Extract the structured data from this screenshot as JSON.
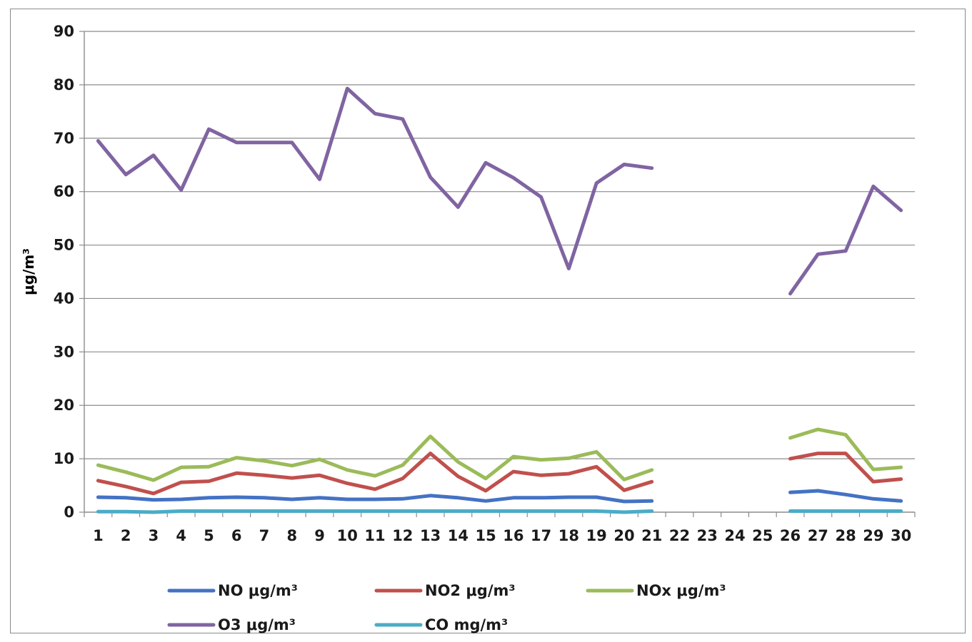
{
  "chart_data": {
    "type": "line",
    "title": "",
    "xlabel": "",
    "ylabel": "μg/m³",
    "ylim": [
      0,
      90
    ],
    "yticks": [
      0,
      10,
      20,
      30,
      40,
      50,
      60,
      70,
      80,
      90
    ],
    "grid": true,
    "legend_position": "bottom",
    "categories": [
      "1",
      "2",
      "3",
      "4",
      "5",
      "6",
      "7",
      "8",
      "9",
      "10",
      "11",
      "12",
      "13",
      "14",
      "15",
      "16",
      "17",
      "18",
      "19",
      "20",
      "21",
      "22",
      "23",
      "24",
      "25",
      "26",
      "27",
      "28",
      "29",
      "30"
    ],
    "series": [
      {
        "name": "NO μg/m³",
        "color": "#4472C4",
        "values": [
          2.8,
          2.7,
          2.3,
          2.4,
          2.7,
          2.8,
          2.7,
          2.4,
          2.7,
          2.4,
          2.4,
          2.5,
          3.1,
          2.7,
          2.1,
          2.7,
          2.7,
          2.8,
          2.8,
          2.0,
          2.1,
          null,
          null,
          null,
          null,
          3.7,
          4.0,
          3.3,
          2.5,
          2.1
        ]
      },
      {
        "name": "NO2 μg/m³",
        "color": "#C0504D",
        "values": [
          5.9,
          4.8,
          3.5,
          5.6,
          5.8,
          7.3,
          6.9,
          6.4,
          6.9,
          5.4,
          4.3,
          6.3,
          11.0,
          6.7,
          4.0,
          7.6,
          6.9,
          7.2,
          8.5,
          4.1,
          5.7,
          null,
          null,
          null,
          null,
          10.0,
          11.0,
          11.0,
          5.7,
          6.2
        ]
      },
      {
        "name": "NOx μg/m³",
        "color": "#9BBB59",
        "values": [
          8.8,
          7.5,
          6.0,
          8.4,
          8.5,
          10.2,
          9.6,
          8.7,
          9.9,
          7.9,
          6.8,
          8.8,
          14.2,
          9.4,
          6.3,
          10.4,
          9.8,
          10.1,
          11.3,
          6.1,
          7.9,
          null,
          null,
          null,
          null,
          13.9,
          15.5,
          14.5,
          8.0,
          8.4
        ]
      },
      {
        "name": "O3 μg/m³",
        "color": "#8064A2",
        "values": [
          69.5,
          63.2,
          66.8,
          60.3,
          71.7,
          69.2,
          69.2,
          69.2,
          62.3,
          79.3,
          74.6,
          73.6,
          62.7,
          57.1,
          65.4,
          62.6,
          59.0,
          45.6,
          61.6,
          65.1,
          64.4,
          null,
          null,
          null,
          null,
          40.9,
          48.3,
          48.9,
          61.0,
          56.5
        ]
      },
      {
        "name": "CO mg/m³",
        "color": "#4BACC6",
        "values": [
          0.1,
          0.1,
          0.0,
          0.2,
          0.2,
          0.2,
          0.2,
          0.2,
          0.2,
          0.2,
          0.2,
          0.2,
          0.2,
          0.2,
          0.2,
          0.2,
          0.2,
          0.2,
          0.2,
          0.0,
          0.2,
          null,
          null,
          null,
          null,
          0.2,
          0.2,
          0.2,
          0.2,
          0.2
        ]
      }
    ]
  }
}
